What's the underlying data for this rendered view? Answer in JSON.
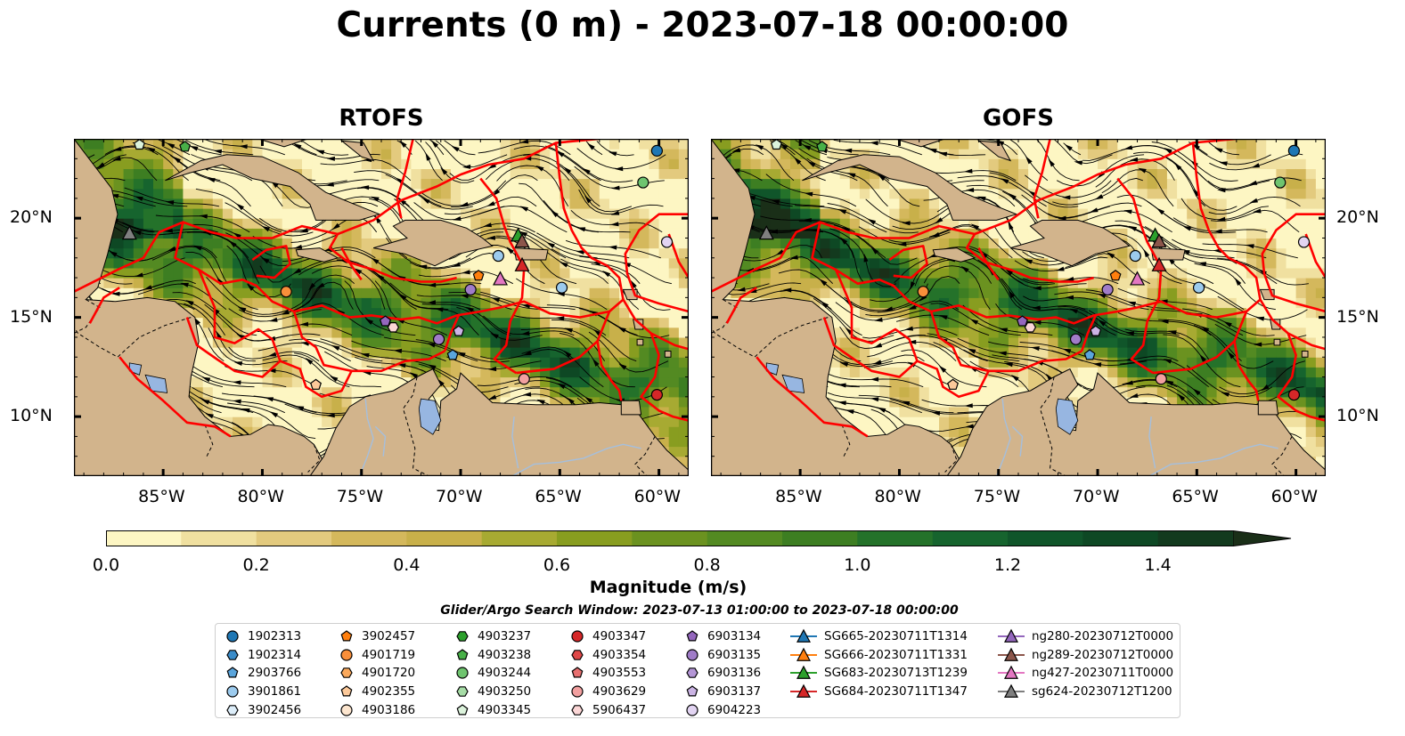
{
  "title": "Currents (0 m) - 2023-07-18 00:00:00",
  "panels": [
    {
      "title": "RTOFS"
    },
    {
      "title": "GOFS"
    }
  ],
  "axes": {
    "lon_ticks": [
      "85°W",
      "80°W",
      "75°W",
      "70°W",
      "65°W",
      "60°W"
    ],
    "lat_ticks": [
      "20°N",
      "15°N",
      "10°N"
    ],
    "lon_range": [
      -89.5,
      -58.5
    ],
    "lat_range": [
      7.0,
      24.0
    ]
  },
  "colorbar": {
    "label": "Magnitude (m/s)",
    "ticks": [
      "0.0",
      "0.2",
      "0.4",
      "0.6",
      "0.8",
      "1.0",
      "1.2",
      "1.4"
    ],
    "range": [
      0.0,
      1.5
    ],
    "extend": "max",
    "colors": [
      "#fdf6c3",
      "#f0e0a0",
      "#e3ca7e",
      "#d4b85c",
      "#c8b04a",
      "#a7aa32",
      "#889d20",
      "#6b9220",
      "#538a22",
      "#3d7e22",
      "#24722a",
      "#16642e",
      "#10552a",
      "#0e4824",
      "#133a1e",
      "#1a2f18"
    ]
  },
  "search_window": "Glider/Argo Search Window: 2023-07-13 01:00:00 to 2023-07-18 00:00:00",
  "legend": {
    "columns": [
      [
        {
          "label": "1902313",
          "marker": "circle",
          "color": "#1f77b4"
        },
        {
          "label": "1902314",
          "marker": "hexagon",
          "color": "#3a8cc9"
        },
        {
          "label": "2903766",
          "marker": "pentagon",
          "color": "#5aa5dc"
        },
        {
          "label": "3901861",
          "marker": "circle",
          "color": "#9ccbee"
        },
        {
          "label": "3902456",
          "marker": "hexagon",
          "color": "#ddeefa"
        }
      ],
      [
        {
          "label": "3902457",
          "marker": "pentagon",
          "color": "#ff7f0e"
        },
        {
          "label": "4901719",
          "marker": "circle",
          "color": "#f98f3a"
        },
        {
          "label": "4901720",
          "marker": "hexagon",
          "color": "#fba95c"
        },
        {
          "label": "4902355",
          "marker": "pentagon",
          "color": "#fcc99a"
        },
        {
          "label": "4903186",
          "marker": "circle",
          "color": "#fde6cf"
        }
      ],
      [
        {
          "label": "4903237",
          "marker": "hexagon",
          "color": "#2ca02c"
        },
        {
          "label": "4903238",
          "marker": "pentagon",
          "color": "#48b048"
        },
        {
          "label": "4903244",
          "marker": "circle",
          "color": "#6fc46f"
        },
        {
          "label": "4903250",
          "marker": "hexagon",
          "color": "#a6dca6"
        },
        {
          "label": "4903345",
          "marker": "pentagon",
          "color": "#dcf3dc"
        }
      ],
      [
        {
          "label": "4903347",
          "marker": "circle",
          "color": "#d62728"
        },
        {
          "label": "4903354",
          "marker": "hexagon",
          "color": "#e04848"
        },
        {
          "label": "4903553",
          "marker": "pentagon",
          "color": "#e87070"
        },
        {
          "label": "4903629",
          "marker": "circle",
          "color": "#f2a0a0"
        },
        {
          "label": "5906437",
          "marker": "hexagon",
          "color": "#fbd6d6"
        }
      ],
      [
        {
          "label": "6903134",
          "marker": "pentagon",
          "color": "#9467bd"
        },
        {
          "label": "6903135",
          "marker": "circle",
          "color": "#a07cc8"
        },
        {
          "label": "6903136",
          "marker": "hexagon",
          "color": "#b496d6"
        },
        {
          "label": "6903137",
          "marker": "pentagon",
          "color": "#cbb4e4"
        },
        {
          "label": "6904223",
          "marker": "circle",
          "color": "#e2d4f2"
        }
      ],
      [
        {
          "label": "SG665-20230711T1314",
          "marker": "triangle",
          "color": "#1f77b4"
        },
        {
          "label": "SG666-20230711T1331",
          "marker": "triangle",
          "color": "#ff7f0e"
        },
        {
          "label": "SG683-20230713T1239",
          "marker": "triangle",
          "color": "#2ca02c"
        },
        {
          "label": "SG684-20230711T1347",
          "marker": "triangle",
          "color": "#d62728"
        }
      ],
      [
        {
          "label": "ng280-20230712T0000",
          "marker": "triangle",
          "color": "#9467bd"
        },
        {
          "label": "ng289-20230712T0000",
          "marker": "triangle",
          "color": "#8c564b"
        },
        {
          "label": "ng427-20230711T0000",
          "marker": "triangle",
          "color": "#e377c2"
        },
        {
          "label": "sg624-20230712T1200",
          "marker": "triangle",
          "color": "#7f7f7f"
        }
      ]
    ]
  },
  "map_colors": {
    "land": "#d2b48c",
    "lake": "#97b6e1",
    "river": "#a5bfdd",
    "boundary": "#ff0000",
    "streamline": "#000000"
  },
  "platforms": [
    {
      "name": "1902313",
      "marker": "circle",
      "color": "#1f77b4",
      "lon": -60.1,
      "lat": 23.4
    },
    {
      "name": "4903244",
      "marker": "circle",
      "color": "#6fc46f",
      "lon": -60.8,
      "lat": 21.8
    },
    {
      "name": "6904223",
      "marker": "circle",
      "color": "#e2d4f2",
      "lon": -59.6,
      "lat": 18.8
    },
    {
      "name": "3901861",
      "marker": "circle",
      "color": "#9ccbee",
      "lon": -68.1,
      "lat": 18.1
    },
    {
      "name": "2903766",
      "marker": "pentagon",
      "color": "#5aa5dc",
      "lon": -70.4,
      "lat": 13.1
    },
    {
      "name": "3902457",
      "marker": "pentagon",
      "color": "#ff7f0e",
      "lon": -69.1,
      "lat": 17.1
    },
    {
      "name": "4901719",
      "marker": "circle",
      "color": "#f98f3a",
      "lon": -78.8,
      "lat": 16.3
    },
    {
      "name": "4902355",
      "marker": "pentagon",
      "color": "#fcc99a",
      "lon": -77.3,
      "lat": 11.6
    },
    {
      "name": "6903135",
      "marker": "circle",
      "color": "#a07cc8",
      "lon": -69.5,
      "lat": 16.4
    },
    {
      "name": "3901861",
      "marker": "circle",
      "color": "#9ccbee",
      "lon": -64.9,
      "lat": 16.5
    },
    {
      "name": "6903134",
      "marker": "pentagon",
      "color": "#9467bd",
      "lon": -73.8,
      "lat": 14.8
    },
    {
      "name": "5906437",
      "marker": "hexagon",
      "color": "#fbd6d6",
      "lon": -73.4,
      "lat": 14.5
    },
    {
      "name": "6903135",
      "marker": "circle",
      "color": "#a07cc8",
      "lon": -71.1,
      "lat": 13.9
    },
    {
      "name": "6903137",
      "marker": "pentagon",
      "color": "#cbb4e4",
      "lon": -70.1,
      "lat": 14.3
    },
    {
      "name": "4903629",
      "marker": "circle",
      "color": "#f2a0a0",
      "lon": -66.8,
      "lat": 11.9
    },
    {
      "name": "4903347",
      "marker": "circle",
      "color": "#d62728",
      "lon": -60.1,
      "lat": 11.1
    },
    {
      "name": "4903238",
      "marker": "pentagon",
      "color": "#48b048",
      "lon": -83.9,
      "lat": 23.6
    },
    {
      "name": "4903345",
      "marker": "pentagon",
      "color": "#dcf3dc",
      "lon": -86.2,
      "lat": 23.7
    },
    {
      "name": "sg624-20230712T1200",
      "marker": "triangle",
      "color": "#7f7f7f",
      "lon": -86.7,
      "lat": 19.2
    },
    {
      "name": "SG683-20230713T1239",
      "marker": "triangle",
      "color": "#2ca02c",
      "lon": -67.1,
      "lat": 19.1
    },
    {
      "name": "ng289-20230712T0000",
      "marker": "triangle",
      "color": "#8c564b",
      "lon": -66.9,
      "lat": 18.8
    },
    {
      "name": "SG684-20230711T1347",
      "marker": "triangle",
      "color": "#d62728",
      "lon": -66.9,
      "lat": 17.6
    },
    {
      "name": "ng427-20230711T0000",
      "marker": "triangle",
      "color": "#e377c2",
      "lon": -68.0,
      "lat": 16.9
    }
  ]
}
